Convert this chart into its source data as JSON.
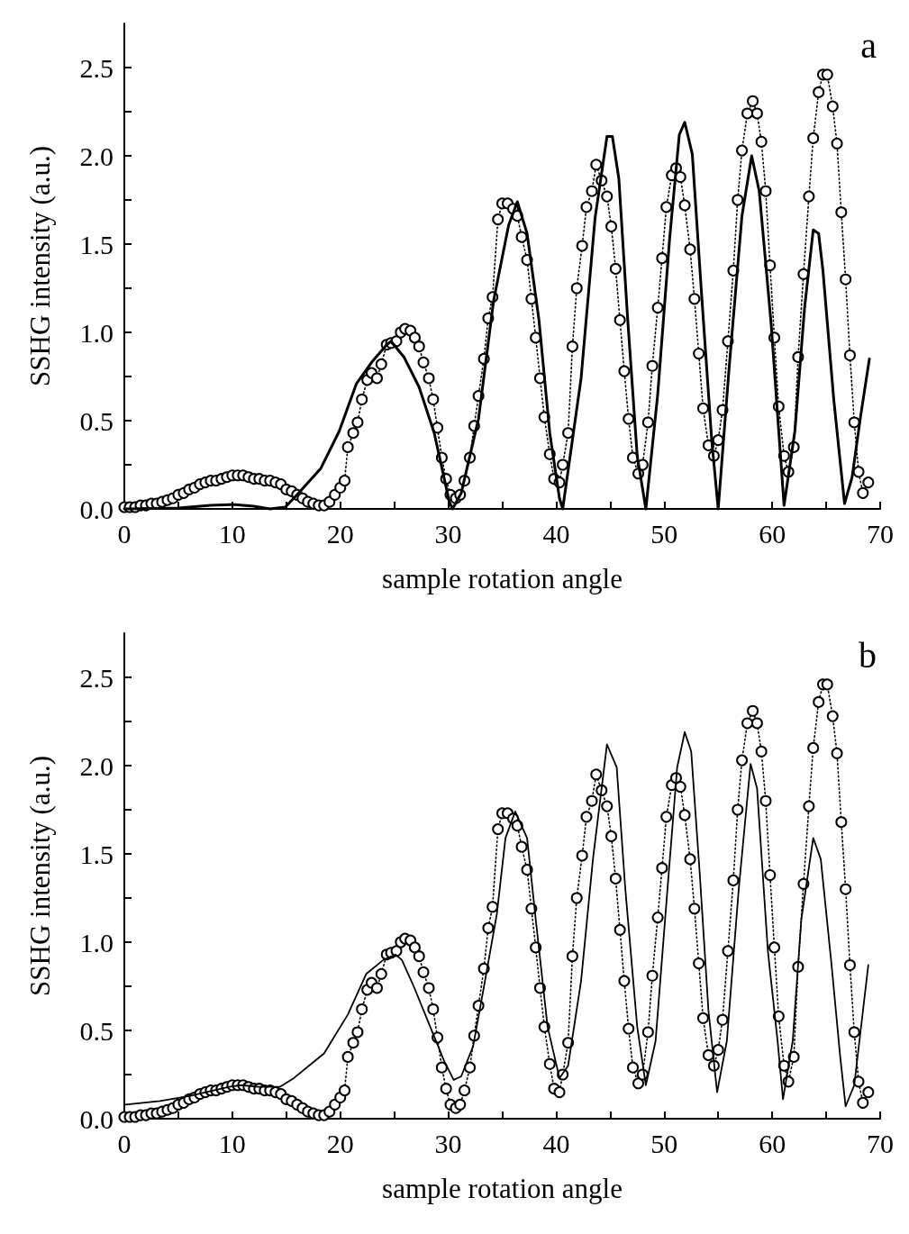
{
  "chart_data": [
    {
      "type": "line",
      "xlabel": "sample rotation angle",
      "ylabel": "SSHG intensity (a.u.)",
      "annotations": [
        "a"
      ],
      "xlim": [
        0,
        70
      ],
      "ylim": [
        0,
        2.75
      ],
      "xticks": [
        0,
        {
          "value": 5,
          "label": null
        },
        10,
        {
          "value": 15,
          "label": null
        },
        20,
        {
          "value": 25,
          "label": null
        },
        30,
        {
          "value": 35,
          "label": null
        },
        40,
        {
          "value": 45,
          "label": null
        },
        50,
        {
          "value": 55,
          "label": null
        },
        60,
        {
          "value": 65,
          "label": null
        },
        70
      ],
      "yticks": [
        {
          "value": 0,
          "label": "0.0"
        },
        {
          "value": 0.25,
          "label": null
        },
        {
          "value": 0.5,
          "label": "0.5"
        },
        {
          "value": 0.75,
          "label": null
        },
        {
          "value": 1,
          "label": "1.0"
        },
        {
          "value": 1.25,
          "label": null
        },
        {
          "value": 1.5,
          "label": "1.5"
        },
        {
          "value": 1.75,
          "label": null
        },
        {
          "value": 2,
          "label": "2.0"
        },
        {
          "value": 2.25,
          "label": null
        },
        {
          "value": 2.5,
          "label": "2.5"
        }
      ],
      "series": [
        {
          "color": "#000000",
          "marker": "circle",
          "line_style": "dotted",
          "x": [
            0,
            0.5,
            1,
            1.5,
            2,
            2.5,
            3,
            3.5,
            4,
            4.5,
            5,
            5.5,
            6,
            6.5,
            7,
            7.5,
            8,
            8.5,
            9,
            9.5,
            10,
            10.5,
            11,
            11.5,
            12,
            12.5,
            13,
            13.5,
            14,
            14.5,
            15,
            15.5,
            16,
            16.5,
            17,
            17.5,
            18,
            18.5,
            19,
            19.5,
            20,
            20.4,
            20.7,
            21.2,
            21.6,
            22.0,
            22.5,
            22.9,
            23.4,
            23.8,
            24.3,
            24.7,
            25.2,
            25.6,
            26.0,
            26.5,
            26.9,
            27.3,
            27.7,
            28.2,
            28.6,
            29.0,
            29.4,
            29.8,
            30.2,
            30.7,
            31.1,
            31.5,
            32.0,
            32.4,
            32.8,
            33.3,
            33.7,
            34.1,
            34.6,
            35.0,
            35.5,
            36.0,
            36.4,
            36.8,
            37.3,
            37.7,
            38.1,
            38.5,
            38.9,
            39.4,
            39.8,
            40.3,
            40.6,
            41.1,
            41.5,
            41.9,
            42.4,
            42.8,
            43.3,
            43.7,
            44.2,
            44.7,
            45.1,
            45.5,
            45.9,
            46.3,
            46.7,
            47.1,
            47.6,
            48.0,
            48.5,
            48.9,
            49.4,
            49.8,
            50.2,
            50.7,
            51.1,
            51.5,
            51.9,
            52.4,
            52.8,
            53.2,
            53.6,
            54.1,
            54.6,
            55.0,
            55.4,
            55.9,
            56.4,
            56.8,
            57.2,
            57.7,
            58.2,
            58.6,
            59.0,
            59.4,
            59.8,
            60.2,
            60.6,
            61.1,
            61.5,
            62.0,
            62.4,
            62.9,
            63.4,
            63.8,
            64.3,
            64.7,
            65.1,
            65.6,
            66.0,
            66.4,
            66.8,
            67.2,
            67.6,
            68.0,
            68.4,
            68.9
          ],
          "values": [
            0.01,
            0.01,
            0.01,
            0.02,
            0.02,
            0.03,
            0.03,
            0.04,
            0.05,
            0.06,
            0.08,
            0.09,
            0.11,
            0.12,
            0.14,
            0.15,
            0.16,
            0.16,
            0.17,
            0.18,
            0.19,
            0.19,
            0.19,
            0.18,
            0.17,
            0.17,
            0.16,
            0.16,
            0.15,
            0.14,
            0.11,
            0.1,
            0.08,
            0.06,
            0.04,
            0.03,
            0.02,
            0.02,
            0.04,
            0.08,
            0.12,
            0.16,
            0.35,
            0.43,
            0.49,
            0.62,
            0.73,
            0.77,
            0.74,
            0.82,
            0.93,
            0.94,
            0.95,
            1.0,
            1.02,
            1.01,
            0.97,
            0.92,
            0.83,
            0.74,
            0.62,
            0.46,
            0.29,
            0.17,
            0.08,
            0.06,
            0.08,
            0.16,
            0.29,
            0.47,
            0.64,
            0.85,
            1.08,
            1.2,
            1.64,
            1.73,
            1.73,
            1.7,
            1.66,
            1.54,
            1.41,
            1.19,
            0.97,
            0.74,
            0.52,
            0.31,
            0.17,
            0.15,
            0.25,
            0.43,
            0.92,
            1.25,
            1.49,
            1.71,
            1.8,
            1.95,
            1.86,
            1.77,
            1.6,
            1.36,
            1.07,
            0.78,
            0.51,
            0.29,
            0.2,
            0.25,
            0.49,
            0.81,
            1.14,
            1.42,
            1.71,
            1.89,
            1.93,
            1.88,
            1.72,
            1.47,
            1.19,
            0.88,
            0.57,
            0.36,
            0.3,
            0.39,
            0.56,
            0.95,
            1.35,
            1.75,
            2.03,
            2.24,
            2.31,
            2.24,
            2.08,
            1.8,
            1.38,
            0.97,
            0.58,
            0.3,
            0.21,
            0.35,
            0.86,
            1.33,
            1.77,
            2.1,
            2.36,
            2.46,
            2.46,
            2.28,
            2.07,
            1.68,
            1.3,
            0.87,
            0.49,
            0.21,
            0.09,
            0.15
          ]
        },
        {
          "color": "#000000",
          "marker": "none",
          "line_style": "solid",
          "x": [
            0,
            5,
            8,
            10,
            12,
            13.5,
            14.9,
            16.0,
            18.2,
            19.9,
            21.5,
            22.9,
            24.3,
            24.7,
            25.9,
            27.3,
            28.7,
            30.1,
            30.4,
            31.2,
            32.8,
            34.2,
            35.6,
            36.4,
            37.3,
            38.4,
            39.4,
            40.3,
            40.6,
            42.3,
            43.6,
            44.7,
            45.2,
            45.8,
            46.6,
            47.5,
            48.3,
            49.4,
            50.5,
            51.4,
            51.9,
            52.6,
            53.5,
            54.4,
            55.0,
            56.0,
            57.2,
            58.1,
            58.8,
            59.9,
            60.7,
            61.1,
            62.1,
            63.0,
            63.8,
            64.3,
            64.7,
            65.7,
            66.7,
            67.4,
            68.2,
            69.0
          ],
          "values": [
            0,
            0.005,
            0.02,
            0.025,
            0.015,
            0,
            0.01,
            0.08,
            0.23,
            0.44,
            0.71,
            0.83,
            0.93,
            0.95,
            0.86,
            0.69,
            0.43,
            0.04,
            0,
            0.09,
            0.51,
            1.18,
            1.61,
            1.74,
            1.56,
            1.07,
            0.43,
            0.06,
            0,
            0.74,
            1.65,
            2.11,
            2.11,
            1.87,
            1.09,
            0.3,
            0,
            0.65,
            1.53,
            2.12,
            2.19,
            2.01,
            1.18,
            0.39,
            0,
            0.79,
            1.66,
            2.0,
            1.8,
            1.05,
            0.36,
            0.02,
            0.44,
            1.14,
            1.58,
            1.56,
            1.35,
            0.62,
            0.03,
            0.18,
            0.53,
            0.85
          ]
        }
      ]
    },
    {
      "type": "line",
      "xlabel": "sample rotation angle",
      "ylabel": "SSHG intensity (a.u.)",
      "annotations": [
        "b"
      ],
      "xlim": [
        0,
        70
      ],
      "ylim": [
        0,
        2.75
      ],
      "xticks": [
        0,
        {
          "value": 5,
          "label": null
        },
        10,
        {
          "value": 15,
          "label": null
        },
        20,
        {
          "value": 25,
          "label": null
        },
        30,
        {
          "value": 35,
          "label": null
        },
        40,
        {
          "value": 45,
          "label": null
        },
        50,
        {
          "value": 55,
          "label": null
        },
        60,
        {
          "value": 65,
          "label": null
        },
        70
      ],
      "yticks": [
        {
          "value": 0,
          "label": "0.0"
        },
        {
          "value": 0.25,
          "label": null
        },
        {
          "value": 0.5,
          "label": "0.5"
        },
        {
          "value": 0.75,
          "label": null
        },
        {
          "value": 1,
          "label": "1.0"
        },
        {
          "value": 1.25,
          "label": null
        },
        {
          "value": 1.5,
          "label": "1.5"
        },
        {
          "value": 1.75,
          "label": null
        },
        {
          "value": 2,
          "label": "2.0"
        },
        {
          "value": 2.25,
          "label": null
        },
        {
          "value": 2.5,
          "label": "2.5"
        }
      ],
      "series": [
        {
          "color": "#000000",
          "marker": "circle",
          "line_style": "dotted",
          "x": [
            0,
            0.5,
            1,
            1.5,
            2,
            2.5,
            3,
            3.5,
            4,
            4.5,
            5,
            5.5,
            6,
            6.5,
            7,
            7.5,
            8,
            8.5,
            9,
            9.5,
            10,
            10.5,
            11,
            11.5,
            12,
            12.5,
            13,
            13.5,
            14,
            14.5,
            15,
            15.5,
            16,
            16.5,
            17,
            17.5,
            18,
            18.5,
            19,
            19.5,
            20,
            20.4,
            20.7,
            21.2,
            21.6,
            22.0,
            22.5,
            22.9,
            23.4,
            23.8,
            24.3,
            24.7,
            25.2,
            25.6,
            26.0,
            26.5,
            26.9,
            27.3,
            27.7,
            28.2,
            28.6,
            29.0,
            29.4,
            29.8,
            30.2,
            30.7,
            31.1,
            31.5,
            32.0,
            32.4,
            32.8,
            33.3,
            33.7,
            34.1,
            34.6,
            35.0,
            35.5,
            36.0,
            36.4,
            36.8,
            37.3,
            37.7,
            38.1,
            38.5,
            38.9,
            39.4,
            39.8,
            40.3,
            40.6,
            41.1,
            41.5,
            41.9,
            42.4,
            42.8,
            43.3,
            43.7,
            44.2,
            44.7,
            45.1,
            45.5,
            45.9,
            46.3,
            46.7,
            47.1,
            47.6,
            48.0,
            48.5,
            48.9,
            49.4,
            49.8,
            50.2,
            50.7,
            51.1,
            51.5,
            51.9,
            52.4,
            52.8,
            53.2,
            53.6,
            54.1,
            54.6,
            55.0,
            55.4,
            55.9,
            56.4,
            56.8,
            57.2,
            57.7,
            58.2,
            58.6,
            59.0,
            59.4,
            59.8,
            60.2,
            60.6,
            61.1,
            61.5,
            62.0,
            62.4,
            62.9,
            63.4,
            63.8,
            64.3,
            64.7,
            65.1,
            65.6,
            66.0,
            66.4,
            66.8,
            67.2,
            67.6,
            68.0,
            68.4,
            68.9
          ],
          "values": [
            0.01,
            0.01,
            0.01,
            0.02,
            0.02,
            0.03,
            0.03,
            0.04,
            0.05,
            0.06,
            0.08,
            0.09,
            0.11,
            0.12,
            0.14,
            0.15,
            0.16,
            0.16,
            0.17,
            0.18,
            0.19,
            0.19,
            0.19,
            0.18,
            0.17,
            0.17,
            0.16,
            0.16,
            0.15,
            0.14,
            0.11,
            0.1,
            0.08,
            0.06,
            0.04,
            0.03,
            0.02,
            0.02,
            0.04,
            0.08,
            0.12,
            0.16,
            0.35,
            0.43,
            0.49,
            0.62,
            0.73,
            0.77,
            0.74,
            0.82,
            0.93,
            0.94,
            0.95,
            1.0,
            1.02,
            1.01,
            0.97,
            0.92,
            0.83,
            0.74,
            0.62,
            0.46,
            0.29,
            0.17,
            0.08,
            0.06,
            0.08,
            0.16,
            0.29,
            0.47,
            0.64,
            0.85,
            1.08,
            1.2,
            1.64,
            1.73,
            1.73,
            1.7,
            1.66,
            1.54,
            1.41,
            1.19,
            0.97,
            0.74,
            0.52,
            0.31,
            0.17,
            0.15,
            0.25,
            0.43,
            0.92,
            1.25,
            1.49,
            1.71,
            1.8,
            1.95,
            1.86,
            1.77,
            1.6,
            1.36,
            1.07,
            0.78,
            0.51,
            0.29,
            0.2,
            0.25,
            0.49,
            0.81,
            1.14,
            1.42,
            1.71,
            1.89,
            1.93,
            1.88,
            1.72,
            1.47,
            1.19,
            0.88,
            0.57,
            0.36,
            0.3,
            0.39,
            0.56,
            0.95,
            1.35,
            1.75,
            2.03,
            2.24,
            2.31,
            2.24,
            2.08,
            1.8,
            1.38,
            0.97,
            0.58,
            0.3,
            0.21,
            0.35,
            0.86,
            1.33,
            1.77,
            2.1,
            2.36,
            2.46,
            2.46,
            2.28,
            2.07,
            1.68,
            1.3,
            0.87,
            0.49,
            0.21,
            0.09,
            0.15
          ]
        },
        {
          "color": "#000000",
          "marker": "none",
          "line_style": "solid",
          "x": [
            0.1,
            3.3,
            6.1,
            9.7,
            10.8,
            12.4,
            14.4,
            15.7,
            18.5,
            20.7,
            22.4,
            24.0,
            25.1,
            25.7,
            26.8,
            28.2,
            29.6,
            30.5,
            31.2,
            32.3,
            33.4,
            34.5,
            35.3,
            36.2,
            37.3,
            38.1,
            39.2,
            40.3,
            41.1,
            42.3,
            43.4,
            44.7,
            45.6,
            46.4,
            47.5,
            48.3,
            49.2,
            50.3,
            51.2,
            51.9,
            52.5,
            53.3,
            54.1,
            54.9,
            55.8,
            56.9,
            58.0,
            58.6,
            59.6,
            60.5,
            61.0,
            61.9,
            62.7,
            63.8,
            64.5,
            65.5,
            66.3,
            66.8,
            67.6,
            68.9
          ],
          "values": [
            0.08,
            0.1,
            0.13,
            0.18,
            0.19,
            0.18,
            0.18,
            0.23,
            0.37,
            0.59,
            0.82,
            0.9,
            0.93,
            0.9,
            0.75,
            0.54,
            0.33,
            0.22,
            0.24,
            0.41,
            0.78,
            1.16,
            1.59,
            1.74,
            1.59,
            1.13,
            0.52,
            0.23,
            0.3,
            0.78,
            1.47,
            2.12,
            1.99,
            1.3,
            0.52,
            0.19,
            0.44,
            1.3,
            1.99,
            2.19,
            2.08,
            1.38,
            0.61,
            0.15,
            0.44,
            1.3,
            2.01,
            1.87,
            0.95,
            0.44,
            0.11,
            0.44,
            1.13,
            1.59,
            1.47,
            0.87,
            0.35,
            0.07,
            0.19,
            0.87
          ]
        }
      ]
    }
  ]
}
